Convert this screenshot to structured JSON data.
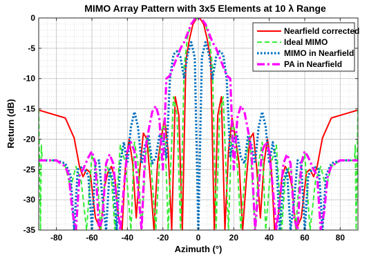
{
  "chart_data": {
    "type": "line",
    "title": "MIMO Array Pattern with 3x5 Elements at 10 λ Range",
    "xlabel": "Azimuth (°)",
    "ylabel": "Return (dB)",
    "xlim": [
      -90,
      90
    ],
    "ylim": [
      -35,
      0
    ],
    "x_ticks": [
      -80,
      -60,
      -40,
      -20,
      0,
      20,
      40,
      60,
      80
    ],
    "y_ticks": [
      0,
      -5,
      -10,
      -15,
      -20,
      -25,
      -30,
      -35
    ],
    "x_tick_labels": [
      "-80",
      "-60",
      "-40",
      "-20",
      "0",
      "20",
      "40",
      "60",
      "80"
    ],
    "y_tick_labels": [
      "0",
      "-5",
      "-10",
      "-15",
      "-20",
      "-25",
      "-30",
      "-35"
    ],
    "grid": true,
    "minor_grid": true,
    "legend_position": "top-right",
    "series": [
      {
        "name": "Nearfield corrected",
        "color": "#ff0000",
        "dash": "solid",
        "x": [
          -90,
          -75,
          -70,
          -67,
          -65,
          -63,
          -61,
          -58,
          -55,
          -53,
          -51,
          -49,
          -47,
          -45,
          -43,
          -41,
          -39,
          -37,
          -35,
          -33,
          -31,
          -29,
          -27,
          -25,
          -23,
          -21,
          -19,
          -17,
          -15,
          -13,
          -11,
          -9,
          -7,
          -5,
          -3,
          -1,
          0,
          1,
          3,
          5,
          7,
          9,
          11,
          13,
          15,
          17,
          19,
          21,
          23,
          25,
          27,
          29,
          31,
          33,
          35,
          37,
          39,
          41,
          43,
          45,
          47,
          49,
          51,
          53,
          55,
          58,
          61,
          63,
          65,
          67,
          70,
          75,
          90
        ],
        "y": [
          -15.2,
          -16.5,
          -19.8,
          -24.5,
          -26.2,
          -25,
          -25.5,
          -33,
          -35,
          -28,
          -25.5,
          -24.5,
          -26.5,
          -33,
          -35,
          -24,
          -20,
          -24,
          -33,
          -25,
          -19,
          -20,
          -27,
          -35,
          -24,
          -20,
          -16.5,
          -22,
          -35,
          -13,
          -16,
          -35,
          -7,
          -3.5,
          -1,
          -0.1,
          0,
          -0.1,
          -1,
          -3.5,
          -7,
          -35,
          -16,
          -13,
          -35,
          -22,
          -16.5,
          -20,
          -24,
          -35,
          -27,
          -20,
          -19,
          -25,
          -33,
          -24,
          -20,
          -24,
          -35,
          -33,
          -26.5,
          -24.5,
          -25.5,
          -28,
          -35,
          -33,
          -25.5,
          -25,
          -26.2,
          -24.5,
          -19.8,
          -16.5,
          -15.2
        ]
      },
      {
        "name": "Ideal MIMO",
        "color": "#33ee33",
        "dash": "dashed",
        "x": [
          -90,
          -89,
          -88.5,
          -88,
          -86,
          -80,
          -75,
          -72,
          -69,
          -66,
          -63,
          -60,
          -57,
          -55,
          -52,
          -49,
          -47,
          -44,
          -41,
          -38,
          -36,
          -34,
          -32,
          -29,
          -27,
          -24,
          -21,
          -19,
          -17,
          -14,
          -12,
          -10,
          -8,
          -6,
          -4,
          -2,
          0,
          2,
          4,
          6,
          8,
          10,
          12,
          14,
          17,
          19,
          21,
          24,
          27,
          29,
          32,
          34,
          36,
          38,
          41,
          44,
          47,
          49,
          52,
          55,
          57,
          60,
          63,
          66,
          69,
          72,
          75,
          80,
          86,
          88,
          88.5,
          89,
          90
        ],
        "y": [
          -15,
          -35,
          -21,
          -23.5,
          -23.5,
          -23.5,
          -24.5,
          -28,
          -24.5,
          -27,
          -35,
          -22.5,
          -26,
          -35,
          -24,
          -26.5,
          -35,
          -21,
          -24,
          -35,
          -20.5,
          -24,
          -35,
          -19.5,
          -23,
          -35,
          -19,
          -17,
          -35,
          -13,
          -16,
          -35,
          -8,
          -3,
          -1,
          -0.2,
          0,
          -0.2,
          -1,
          -3,
          -8,
          -35,
          -16,
          -13,
          -35,
          -17,
          -19,
          -35,
          -23,
          -19.5,
          -35,
          -24,
          -20.5,
          -35,
          -24,
          -21,
          -35,
          -26.5,
          -24,
          -35,
          -26,
          -22.5,
          -35,
          -27,
          -24.5,
          -28,
          -24.5,
          -23.5,
          -23.5,
          -23.5,
          -21,
          -35,
          -15
        ]
      },
      {
        "name": "MIMO in Nearfield",
        "color": "#0070c0",
        "dash": "dotted",
        "x": [
          -90,
          -80,
          -75,
          -72,
          -70,
          -68,
          -65,
          -62,
          -60,
          -58,
          -56,
          -54,
          -52,
          -50,
          -48,
          -46,
          -44,
          -42,
          -40,
          -38,
          -36,
          -34,
          -32,
          -30,
          -28,
          -26,
          -24,
          -22,
          -20,
          -18,
          -16,
          -14,
          -12,
          -10,
          -8,
          -6,
          -4,
          -2,
          0,
          2,
          4,
          6,
          8,
          10,
          12,
          14,
          16,
          18,
          20,
          22,
          24,
          26,
          28,
          30,
          32,
          34,
          36,
          38,
          40,
          42,
          44,
          46,
          48,
          50,
          52,
          54,
          56,
          58,
          60,
          62,
          65,
          68,
          70,
          72,
          75,
          80,
          90
        ],
        "y": [
          -23.5,
          -23.5,
          -24,
          -26,
          -35,
          -25,
          -24.5,
          -26,
          -35,
          -24,
          -23.5,
          -30,
          -35,
          -25,
          -27,
          -35,
          -24,
          -20.5,
          -24,
          -18,
          -15.5,
          -18,
          -24,
          -21,
          -19.5,
          -24,
          -23,
          -19.5,
          -20,
          -23,
          -10,
          -6,
          -5.5,
          -6.5,
          -10,
          -6,
          -4,
          -6.5,
          -35,
          -6.5,
          -4,
          -6,
          -10,
          -6.5,
          -5.5,
          -6,
          -10,
          -23,
          -20,
          -19.5,
          -23,
          -24,
          -19.5,
          -21,
          -24,
          -18,
          -15.5,
          -18,
          -24,
          -20.5,
          -24,
          -35,
          -27,
          -25,
          -35,
          -30,
          -23.5,
          -24,
          -35,
          -26,
          -24.5,
          -25,
          -35,
          -26,
          -24,
          -23.5,
          -23.5
        ]
      },
      {
        "name": "PA in Nearfield",
        "color": "#ff00ff",
        "dash": "dashdot",
        "x": [
          -90,
          -80,
          -75,
          -73,
          -71,
          -69,
          -67,
          -65,
          -62,
          -60,
          -58,
          -56,
          -54,
          -52,
          -50,
          -48,
          -46,
          -44,
          -42,
          -40,
          -38,
          -36,
          -34,
          -32,
          -30,
          -28,
          -26,
          -24,
          -22,
          -20,
          -18,
          -16,
          -14,
          -12,
          -10,
          -8,
          -6,
          -4,
          -2,
          0,
          2,
          4,
          6,
          8,
          10,
          12,
          14,
          16,
          18,
          20,
          22,
          24,
          26,
          28,
          30,
          32,
          34,
          36,
          38,
          40,
          42,
          44,
          46,
          48,
          50,
          52,
          54,
          56,
          58,
          60,
          62,
          65,
          67,
          69,
          71,
          73,
          75,
          80,
          90
        ],
        "y": [
          -23.5,
          -23.5,
          -24.5,
          -26,
          -32,
          -35,
          -26,
          -25,
          -23,
          -22,
          -24,
          -35,
          -33,
          -24,
          -22.5,
          -24,
          -30,
          -35,
          -28,
          -22,
          -20.5,
          -22,
          -28,
          -35,
          -22,
          -18.5,
          -15.5,
          -14.5,
          -16.5,
          -25,
          -10,
          -9.5,
          -8,
          -6.5,
          -5,
          -4,
          -2.5,
          -1,
          -0.2,
          0,
          -0.2,
          -1,
          -2.5,
          -4,
          -5,
          -6.5,
          -8,
          -9.5,
          -10,
          -25,
          -16.5,
          -14.5,
          -15.5,
          -18.5,
          -22,
          -35,
          -28,
          -22,
          -20.5,
          -22,
          -28,
          -35,
          -30,
          -24,
          -22.5,
          -24,
          -33,
          -35,
          -24,
          -22,
          -23,
          -25,
          -26,
          -35,
          -32,
          -26,
          -24.5,
          -23.5,
          -23.5
        ]
      }
    ]
  }
}
